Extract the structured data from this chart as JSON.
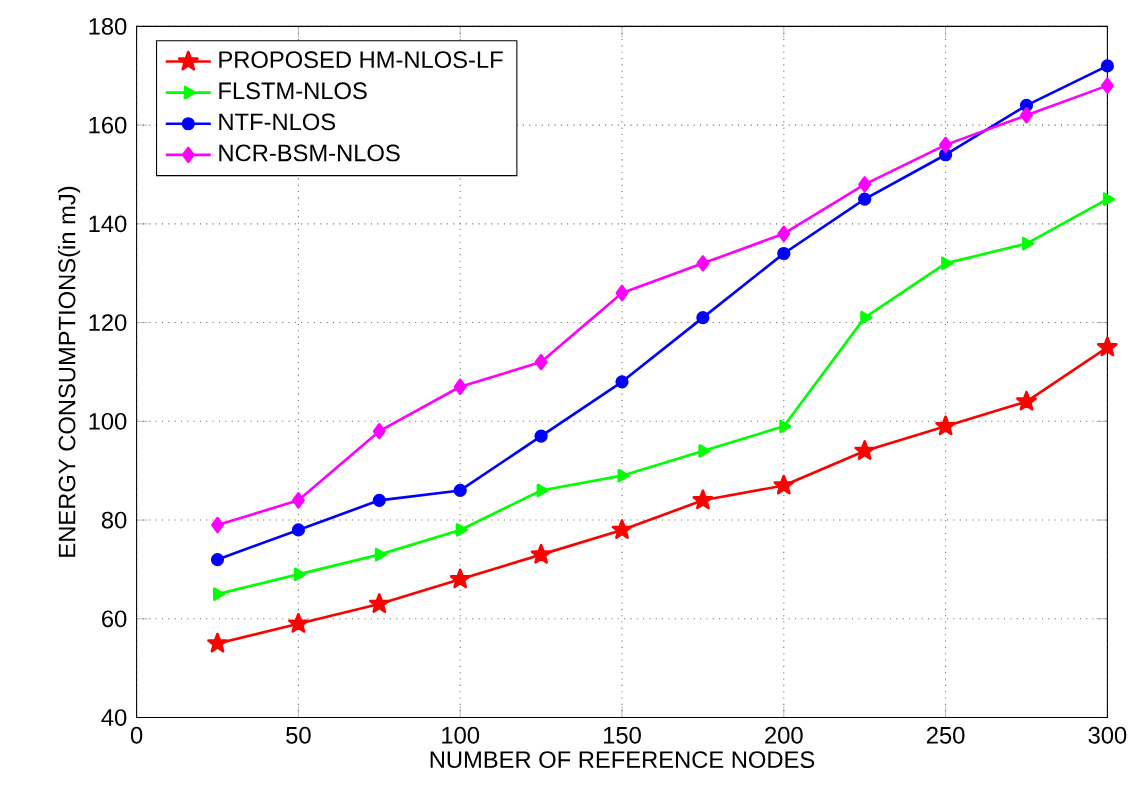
{
  "chart_data": {
    "type": "line",
    "xlabel": "NUMBER OF REFERENCE NODES",
    "ylabel": "ENERGY CONSUMPTIONS(in mJ)",
    "x": [
      25,
      50,
      75,
      100,
      125,
      150,
      175,
      200,
      225,
      250,
      275,
      300
    ],
    "series": [
      {
        "name": "PROPOSED HM-NLOS-LF",
        "color": "#ff0000",
        "marker": "star",
        "values": [
          55,
          59,
          63,
          68,
          73,
          78,
          84,
          87,
          94,
          99,
          104,
          115
        ]
      },
      {
        "name": "FLSTM-NLOS",
        "color": "#00ff00",
        "marker": "triangle",
        "values": [
          65,
          69,
          73,
          78,
          86,
          89,
          94,
          99,
          121,
          132,
          136,
          145
        ]
      },
      {
        "name": "NTF-NLOS",
        "color": "#0000ff",
        "marker": "circle",
        "values": [
          72,
          78,
          84,
          86,
          97,
          108,
          121,
          134,
          145,
          154,
          164,
          172
        ]
      },
      {
        "name": "NCR-BSM-NLOS",
        "color": "#ff00ff",
        "marker": "diamond",
        "values": [
          79,
          84,
          98,
          107,
          112,
          126,
          132,
          138,
          148,
          156,
          162,
          168
        ]
      }
    ],
    "xlim": [
      0,
      300
    ],
    "ylim": [
      40,
      180
    ],
    "xticks": [
      0,
      50,
      100,
      150,
      200,
      250,
      300
    ],
    "yticks": [
      40,
      60,
      80,
      100,
      120,
      140,
      160,
      180
    ],
    "grid": true,
    "legend": "top left",
    "line_style": "solid"
  }
}
